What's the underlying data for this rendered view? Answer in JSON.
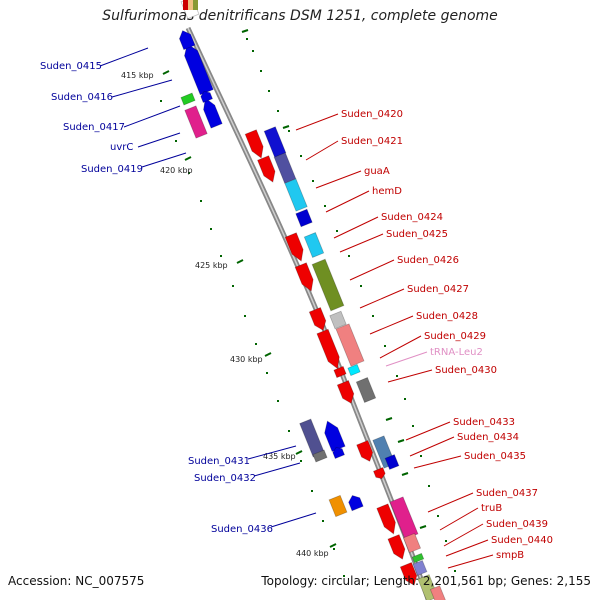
{
  "title": "Sulfurimonas denitrificans DSM 1251, complete genome",
  "footer": {
    "accession": "Accession: NC_007575",
    "summary": "Topology: circular; Length: 2,201,561 bp; Genes: 2,155"
  },
  "colors": {
    "forward_label": "#c00000",
    "reverse_label": "#00009a",
    "rna_label": "#e08fc4",
    "backbone": "#888888",
    "tick": "#006400"
  },
  "ticks": [
    {
      "label": "415 kbp"
    },
    {
      "label": "420 kbp"
    },
    {
      "label": "425 kbp"
    },
    {
      "label": "430 kbp"
    },
    {
      "label": "435 kbp"
    },
    {
      "label": "440 kbp"
    }
  ],
  "labels_left": [
    {
      "id": "Suden_0415"
    },
    {
      "id": "Suden_0416"
    },
    {
      "id": "Suden_0417"
    },
    {
      "id": "uvrC"
    },
    {
      "id": "Suden_0419"
    },
    {
      "id": "Suden_0431"
    },
    {
      "id": "Suden_0432"
    },
    {
      "id": "Suden_0436"
    }
  ],
  "labels_right": [
    {
      "id": "Suden_0420",
      "type": "forward"
    },
    {
      "id": "Suden_0421",
      "type": "forward"
    },
    {
      "id": "guaA",
      "type": "forward"
    },
    {
      "id": "hemD",
      "type": "forward"
    },
    {
      "id": "Suden_0424",
      "type": "forward"
    },
    {
      "id": "Suden_0425",
      "type": "forward"
    },
    {
      "id": "Suden_0426",
      "type": "forward"
    },
    {
      "id": "Suden_0427",
      "type": "forward"
    },
    {
      "id": "Suden_0428",
      "type": "forward"
    },
    {
      "id": "Suden_0429",
      "type": "forward"
    },
    {
      "id": "tRNA-Leu2",
      "type": "rna"
    },
    {
      "id": "Suden_0430",
      "type": "forward"
    },
    {
      "id": "Suden_0433",
      "type": "forward"
    },
    {
      "id": "Suden_0434",
      "type": "forward"
    },
    {
      "id": "Suden_0435",
      "type": "forward"
    },
    {
      "id": "Suden_0437",
      "type": "forward"
    },
    {
      "id": "truB",
      "type": "forward"
    },
    {
      "id": "Suden_0439",
      "type": "forward"
    },
    {
      "id": "Suden_0440",
      "type": "forward"
    },
    {
      "id": "smpB",
      "type": "forward"
    }
  ]
}
